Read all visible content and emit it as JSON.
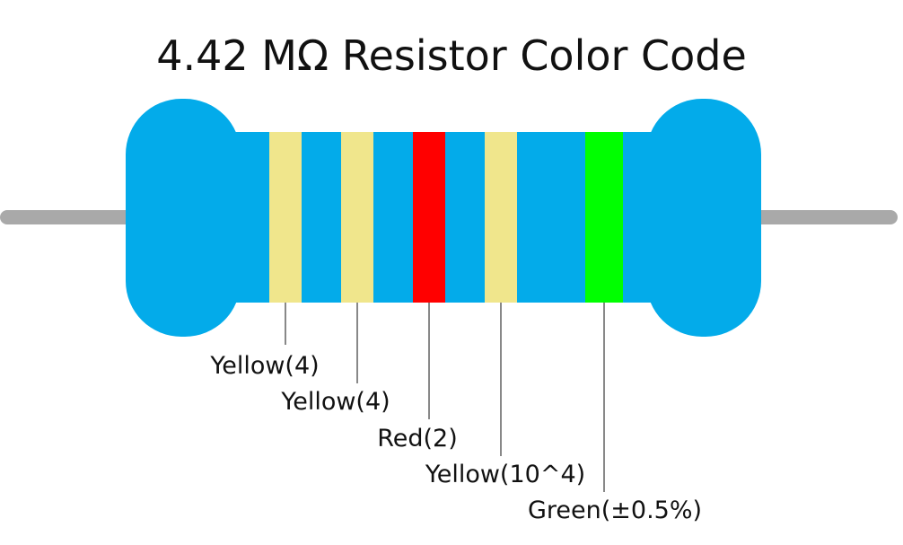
{
  "title": "4.42 MΩ Resistor Color Code",
  "bands": [
    {
      "label": "Yellow(4)",
      "color": "#f0e68c"
    },
    {
      "label": "Yellow(4)",
      "color": "#f0e68c"
    },
    {
      "label": "Red(2)",
      "color": "#ff0000"
    },
    {
      "label": "Yellow(10^4)",
      "color": "#f0e68c"
    },
    {
      "label": "Green(±0.5%)",
      "color": "#00ff00"
    }
  ]
}
